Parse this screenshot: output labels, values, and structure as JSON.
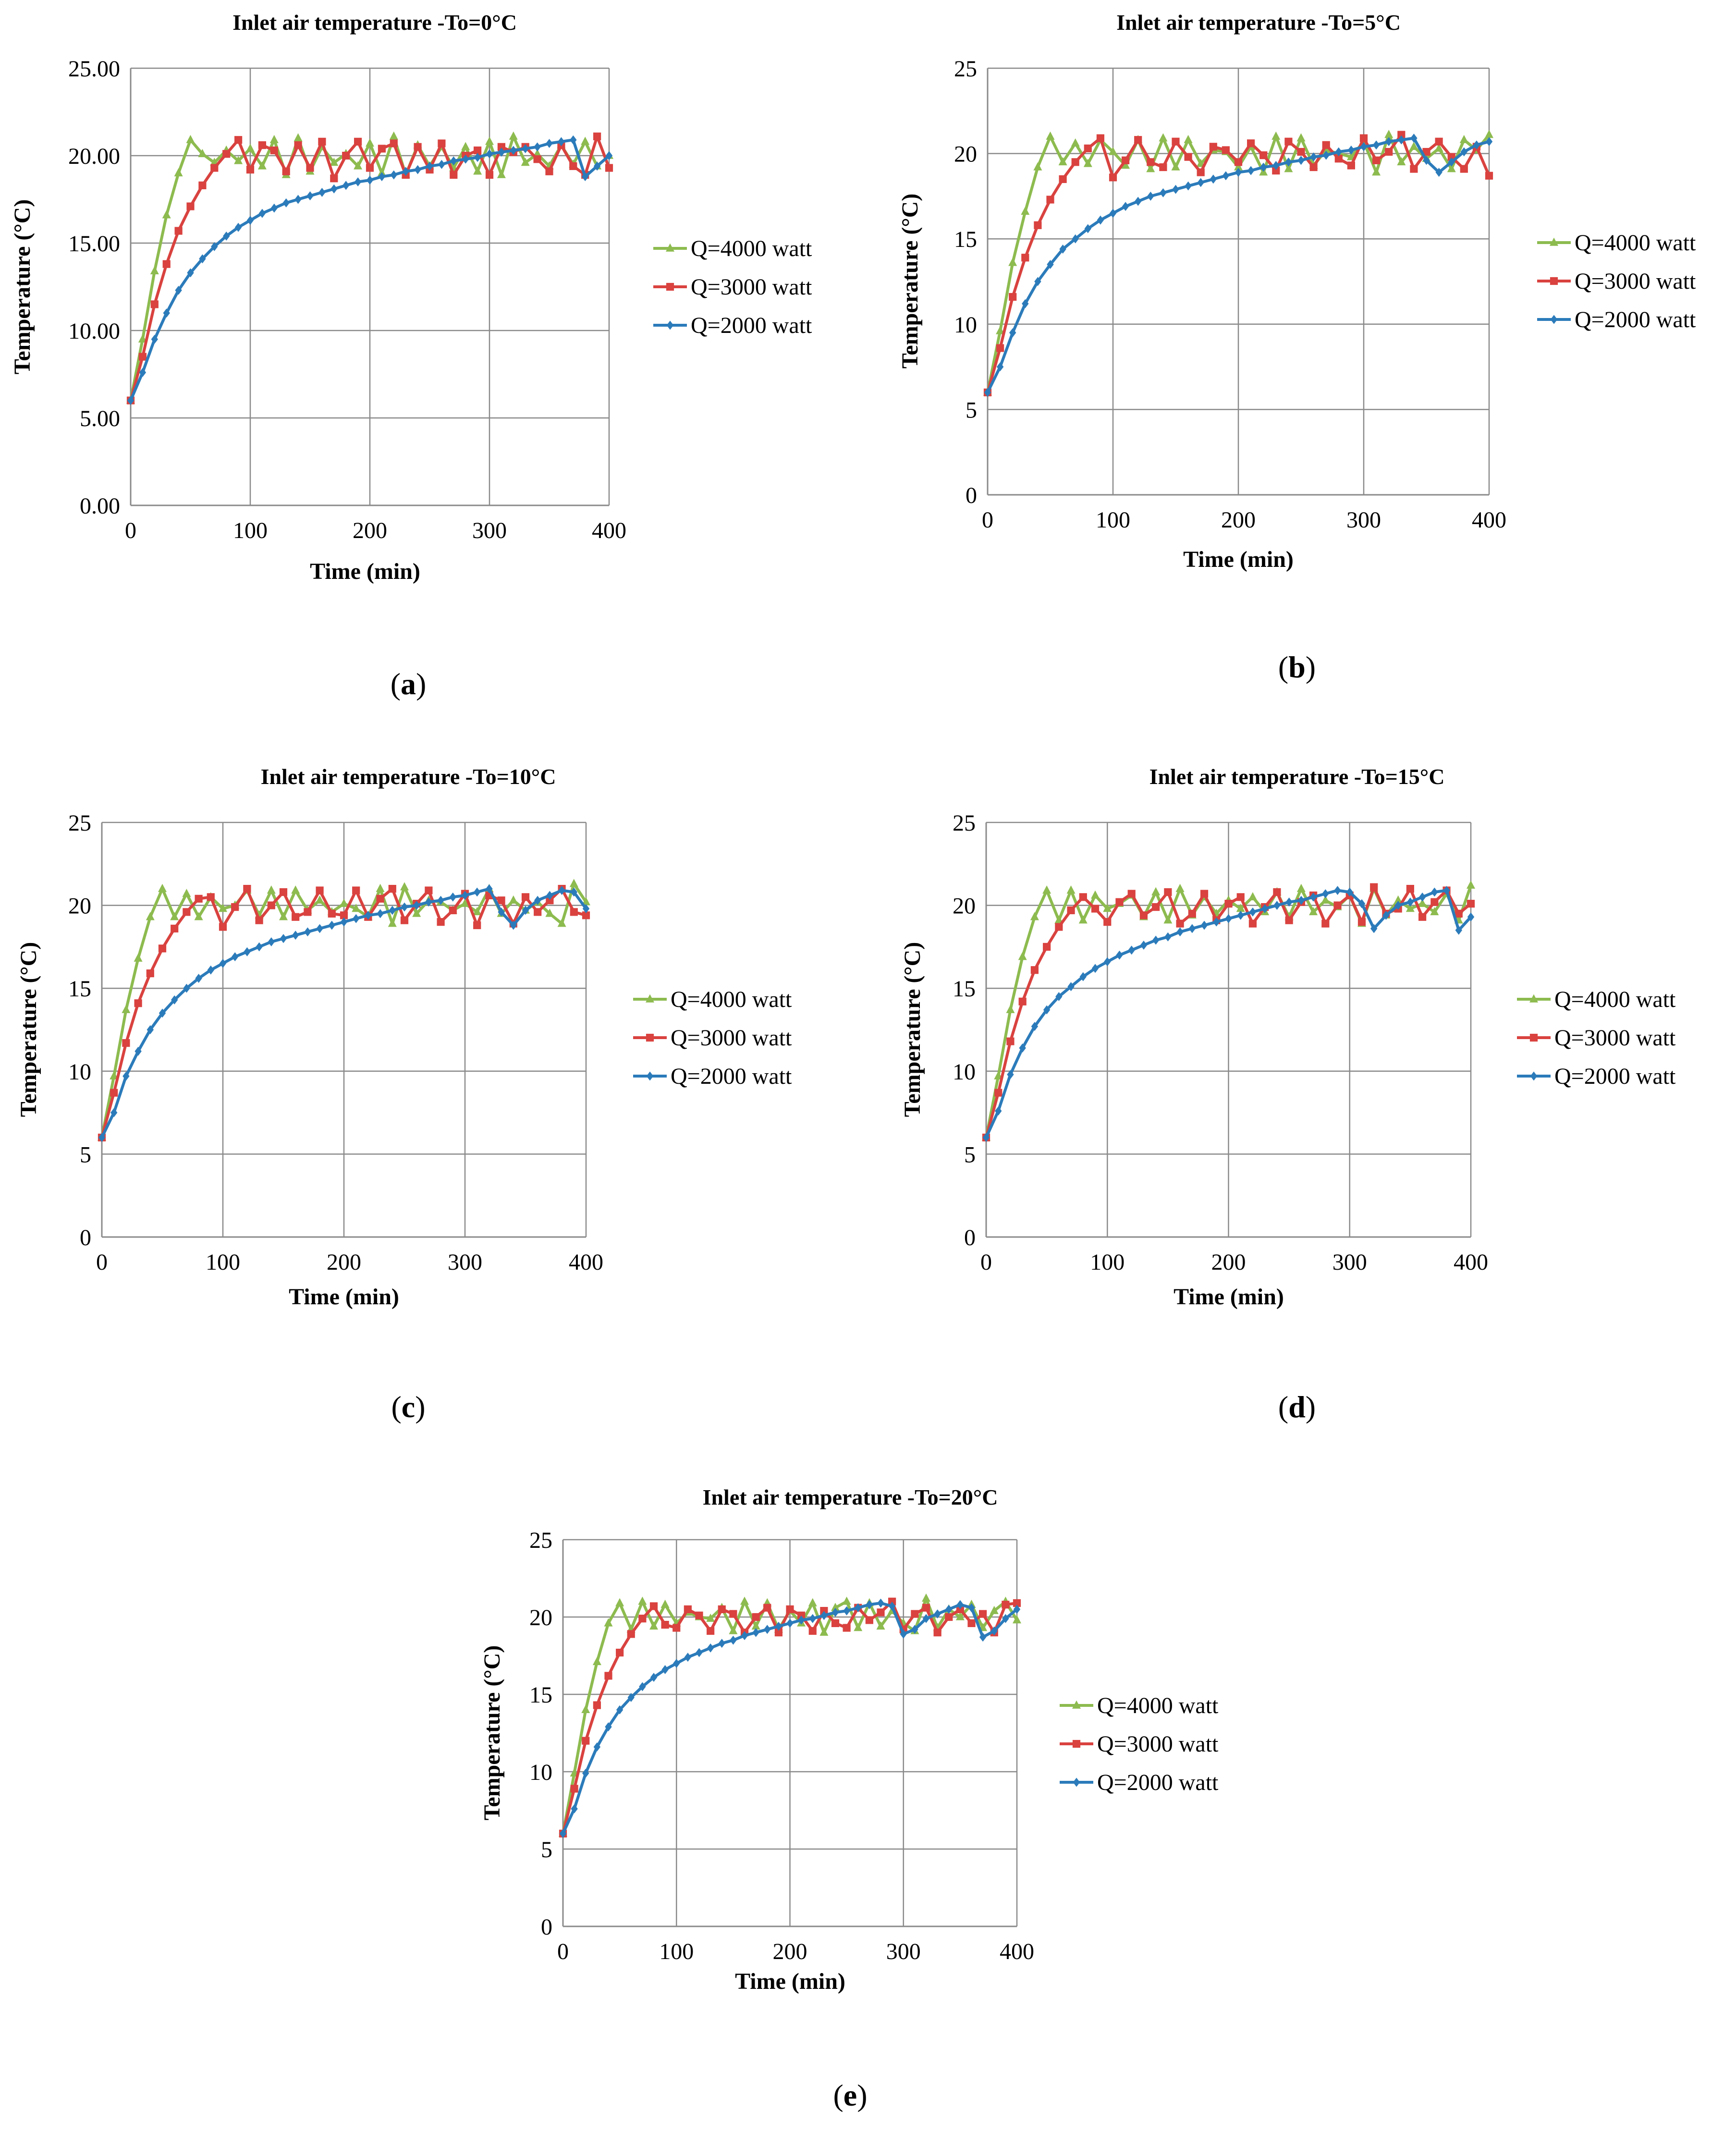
{
  "captions": [
    "(a)",
    "(b)",
    "(c)",
    "(d)",
    "(e)"
  ],
  "colors": {
    "q4000": "#8DBB4F",
    "q3000": "#D9423F",
    "q2000": "#2B7BBA",
    "grid": "#8a8a8a",
    "axis": "#8a8a8a"
  },
  "chart_data": [
    {
      "type": "line",
      "title": "Inlet air temperature -To=0°C",
      "xlabel": "Time (min)",
      "ylabel": "Temperature (°C)",
      "xlim": [
        0,
        400
      ],
      "ylim": [
        0,
        25
      ],
      "xticks": [
        "0",
        "100",
        "200",
        "300",
        "400"
      ],
      "yticks": [
        "0.00",
        "5.00",
        "10.00",
        "15.00",
        "20.00",
        "25.00"
      ],
      "caption": "(a)",
      "legend": "right",
      "x": [
        0,
        10,
        20,
        30,
        40,
        50,
        60,
        70,
        80,
        90,
        100,
        110,
        120,
        130,
        140,
        150,
        160,
        170,
        180,
        190,
        200,
        210,
        220,
        230,
        240,
        250,
        260,
        270,
        280,
        290,
        300,
        310,
        320,
        330,
        340,
        350,
        360,
        370,
        380,
        390,
        400
      ],
      "series": [
        {
          "name": "Q=4000 watt",
          "marker": "triangle",
          "values": [
            6.0,
            9.5,
            13.4,
            16.6,
            19.0,
            20.9,
            20.1,
            19.6,
            20.3,
            19.7,
            20.4,
            19.4,
            20.9,
            18.9,
            21.0,
            19.1,
            20.5,
            19.6,
            20.1,
            19.4,
            20.7,
            19.0,
            21.1,
            18.9,
            20.6,
            19.4,
            20.5,
            19.3,
            20.5,
            19.1,
            20.8,
            18.9,
            21.1,
            19.6,
            20.1,
            19.4,
            20.6,
            19.5,
            20.8,
            19.4,
            20.0
          ]
        },
        {
          "name": "Q=3000 watt",
          "marker": "square",
          "values": [
            6.0,
            8.5,
            11.5,
            13.8,
            15.7,
            17.1,
            18.3,
            19.3,
            20.1,
            20.9,
            19.2,
            20.6,
            20.3,
            19.1,
            20.6,
            19.3,
            20.8,
            18.7,
            20.0,
            20.8,
            19.3,
            20.4,
            20.7,
            18.9,
            20.5,
            19.2,
            20.7,
            18.9,
            20.0,
            20.3,
            18.9,
            20.5,
            20.2,
            20.5,
            19.8,
            19.1,
            20.6,
            19.4,
            18.9,
            21.1,
            19.3
          ]
        },
        {
          "name": "Q=2000 watt",
          "marker": "diamond",
          "values": [
            6.0,
            7.6,
            9.5,
            11.0,
            12.3,
            13.3,
            14.1,
            14.8,
            15.4,
            15.9,
            16.3,
            16.7,
            17.0,
            17.3,
            17.5,
            17.7,
            17.9,
            18.1,
            18.3,
            18.5,
            18.6,
            18.8,
            18.9,
            19.1,
            19.2,
            19.4,
            19.5,
            19.7,
            19.8,
            19.9,
            20.1,
            20.2,
            20.3,
            20.4,
            20.5,
            20.7,
            20.8,
            20.9,
            18.8,
            19.4,
            20.0
          ]
        }
      ]
    },
    {
      "type": "line",
      "title": "Inlet air temperature -To=5°C",
      "xlabel": "Time (min)",
      "ylabel": "Temperature (°C)",
      "xlim": [
        0,
        400
      ],
      "ylim": [
        0,
        25
      ],
      "xticks": [
        "0",
        "100",
        "200",
        "300",
        "400"
      ],
      "yticks": [
        "0",
        "5",
        "10",
        "15",
        "20",
        "25"
      ],
      "caption": "(b)",
      "legend": "right",
      "x": [
        0,
        10,
        20,
        30,
        40,
        50,
        60,
        70,
        80,
        90,
        100,
        110,
        120,
        130,
        140,
        150,
        160,
        170,
        180,
        190,
        200,
        210,
        220,
        230,
        240,
        250,
        260,
        270,
        280,
        290,
        300,
        310,
        320,
        330,
        340,
        350,
        360,
        370,
        380,
        390,
        400
      ],
      "series": [
        {
          "name": "Q=4000 watt",
          "marker": "triangle",
          "values": [
            6.0,
            9.6,
            13.6,
            16.6,
            19.2,
            21.0,
            19.5,
            20.6,
            19.4,
            20.8,
            20.1,
            19.3,
            20.8,
            19.1,
            20.9,
            19.2,
            20.8,
            19.4,
            20.2,
            20.1,
            19.2,
            20.4,
            18.9,
            21.0,
            19.1,
            20.9,
            19.3,
            20.2,
            20.0,
            19.8,
            20.7,
            18.9,
            21.1,
            19.5,
            20.4,
            19.7,
            20.3,
            19.1,
            20.8,
            20.2,
            21.1
          ]
        },
        {
          "name": "Q=3000 watt",
          "marker": "square",
          "values": [
            6.0,
            8.6,
            11.6,
            13.9,
            15.8,
            17.3,
            18.5,
            19.5,
            20.3,
            20.9,
            18.6,
            19.6,
            20.8,
            19.5,
            19.2,
            20.7,
            19.8,
            18.9,
            20.4,
            20.2,
            19.5,
            20.6,
            19.9,
            19.0,
            20.7,
            20.1,
            19.2,
            20.5,
            19.7,
            19.3,
            20.9,
            19.6,
            20.1,
            21.1,
            19.1,
            20.1,
            20.7,
            19.8,
            19.1,
            20.4,
            18.7
          ]
        },
        {
          "name": "Q=2000 watt",
          "marker": "diamond",
          "values": [
            6.0,
            7.5,
            9.5,
            11.2,
            12.5,
            13.5,
            14.4,
            15.0,
            15.6,
            16.1,
            16.5,
            16.9,
            17.2,
            17.5,
            17.7,
            17.9,
            18.1,
            18.3,
            18.5,
            18.7,
            18.9,
            19.0,
            19.2,
            19.3,
            19.5,
            19.6,
            19.8,
            19.9,
            20.1,
            20.2,
            20.4,
            20.5,
            20.7,
            20.8,
            20.9,
            19.6,
            18.9,
            19.5,
            20.1,
            20.5,
            20.7
          ]
        }
      ]
    },
    {
      "type": "line",
      "title": "Inlet air temperature -To=10°C",
      "xlabel": "Time (min)",
      "ylabel": "Temperature (°C)",
      "xlim": [
        0,
        400
      ],
      "ylim": [
        0,
        25
      ],
      "xticks": [
        "0",
        "100",
        "200",
        "300",
        "400"
      ],
      "yticks": [
        "0",
        "5",
        "10",
        "15",
        "20",
        "25"
      ],
      "caption": "(c)",
      "legend": "right",
      "x": [
        0,
        10,
        20,
        30,
        40,
        50,
        60,
        70,
        80,
        90,
        100,
        110,
        120,
        130,
        140,
        150,
        160,
        170,
        180,
        190,
        200,
        210,
        220,
        230,
        240,
        250,
        260,
        270,
        280,
        290,
        300,
        310,
        320,
        330,
        340,
        350,
        360,
        370,
        380,
        390,
        400
      ],
      "series": [
        {
          "name": "Q=4000 watt",
          "marker": "triangle",
          "values": [
            6.0,
            9.7,
            13.7,
            16.8,
            19.3,
            21.0,
            19.3,
            20.7,
            19.3,
            20.5,
            19.8,
            20.0,
            20.9,
            19.4,
            20.9,
            19.3,
            20.9,
            19.7,
            20.3,
            19.6,
            20.1,
            19.8,
            19.3,
            21.0,
            18.9,
            21.1,
            19.5,
            20.3,
            20.2,
            19.7,
            20.1,
            19.6,
            21.0,
            19.5,
            20.3,
            19.7,
            20.2,
            19.5,
            18.9,
            21.3,
            20.2
          ]
        },
        {
          "name": "Q=3000 watt",
          "marker": "square",
          "values": [
            6.0,
            8.7,
            11.7,
            14.1,
            15.9,
            17.4,
            18.6,
            19.6,
            20.4,
            20.5,
            18.7,
            19.9,
            21.0,
            19.1,
            20.0,
            20.8,
            19.3,
            19.6,
            20.9,
            19.5,
            19.4,
            20.9,
            19.3,
            20.4,
            21.0,
            19.1,
            20.1,
            20.9,
            19.0,
            19.7,
            20.7,
            18.8,
            20.6,
            20.3,
            18.9,
            20.5,
            19.6,
            20.3,
            21.0,
            19.6,
            19.4
          ]
        },
        {
          "name": "Q=2000 watt",
          "marker": "diamond",
          "values": [
            6.0,
            7.5,
            9.7,
            11.2,
            12.5,
            13.5,
            14.3,
            15.0,
            15.6,
            16.1,
            16.5,
            16.9,
            17.2,
            17.5,
            17.8,
            18.0,
            18.2,
            18.4,
            18.6,
            18.8,
            19.0,
            19.2,
            19.4,
            19.5,
            19.7,
            19.9,
            20.0,
            20.2,
            20.3,
            20.5,
            20.6,
            20.8,
            21.0,
            19.6,
            18.8,
            19.7,
            20.3,
            20.6,
            20.9,
            20.8,
            19.8
          ]
        }
      ]
    },
    {
      "type": "line",
      "title": "Inlet air temperature -To=15°C",
      "xlabel": "Time (min)",
      "ylabel": "Temperature (°C)",
      "xlim": [
        0,
        400
      ],
      "ylim": [
        0,
        25
      ],
      "xticks": [
        "0",
        "100",
        "200",
        "300",
        "400"
      ],
      "yticks": [
        "0",
        "5",
        "10",
        "15",
        "20",
        "25"
      ],
      "caption": "(d)",
      "legend": "right",
      "x": [
        0,
        10,
        20,
        30,
        40,
        50,
        60,
        70,
        80,
        90,
        100,
        110,
        120,
        130,
        140,
        150,
        160,
        170,
        180,
        190,
        200,
        210,
        220,
        230,
        240,
        250,
        260,
        270,
        280,
        290,
        300,
        310,
        320,
        330,
        340,
        350,
        360,
        370,
        380,
        390,
        400
      ],
      "series": [
        {
          "name": "Q=4000 watt",
          "marker": "triangle",
          "values": [
            6.0,
            9.7,
            13.7,
            16.9,
            19.3,
            20.9,
            19.1,
            20.9,
            19.1,
            20.6,
            19.8,
            20.1,
            20.6,
            19.3,
            20.8,
            19.1,
            21.0,
            19.4,
            20.5,
            19.5,
            20.3,
            19.8,
            20.5,
            19.6,
            20.8,
            19.3,
            21.0,
            19.6,
            20.3,
            19.9,
            20.6,
            18.9,
            21.0,
            19.4,
            20.3,
            19.8,
            20.1,
            19.6,
            20.7,
            19.1,
            21.2
          ]
        },
        {
          "name": "Q=3000 watt",
          "marker": "square",
          "values": [
            6.0,
            8.7,
            11.8,
            14.2,
            16.1,
            17.5,
            18.7,
            19.7,
            20.5,
            19.8,
            19.0,
            20.2,
            20.7,
            19.4,
            19.9,
            20.8,
            18.9,
            19.5,
            20.7,
            19.1,
            20.1,
            20.5,
            18.9,
            19.9,
            20.8,
            19.1,
            20.2,
            20.6,
            18.9,
            20.0,
            20.6,
            19.0,
            21.1,
            19.5,
            19.8,
            21.0,
            19.3,
            20.2,
            20.9,
            19.5,
            20.1
          ]
        },
        {
          "name": "Q=2000 watt",
          "marker": "diamond",
          "values": [
            6.0,
            7.6,
            9.8,
            11.4,
            12.7,
            13.7,
            14.5,
            15.1,
            15.7,
            16.2,
            16.6,
            17.0,
            17.3,
            17.6,
            17.9,
            18.1,
            18.4,
            18.6,
            18.8,
            19.0,
            19.2,
            19.4,
            19.6,
            19.8,
            20.0,
            20.2,
            20.3,
            20.5,
            20.7,
            20.9,
            20.8,
            20.1,
            18.6,
            19.4,
            20.0,
            20.2,
            20.5,
            20.8,
            20.9,
            18.5,
            19.3
          ]
        }
      ]
    },
    {
      "type": "line",
      "title": "Inlet air temperature -To=20°C",
      "xlabel": "Time (min)",
      "ylabel": "Temperature (°C)",
      "xlim": [
        0,
        400
      ],
      "ylim": [
        0,
        25
      ],
      "xticks": [
        "0",
        "100",
        "200",
        "300",
        "400"
      ],
      "yticks": [
        "0",
        "5",
        "10",
        "15",
        "20",
        "25"
      ],
      "caption": "(e)",
      "legend": "right",
      "x": [
        0,
        10,
        20,
        30,
        40,
        50,
        60,
        70,
        80,
        90,
        100,
        110,
        120,
        130,
        140,
        150,
        160,
        170,
        180,
        190,
        200,
        210,
        220,
        230,
        240,
        250,
        260,
        270,
        280,
        290,
        300,
        310,
        320,
        330,
        340,
        350,
        360,
        370,
        380,
        390,
        400
      ],
      "series": [
        {
          "name": "Q=4000 watt",
          "marker": "triangle",
          "values": [
            6.0,
            9.9,
            14.0,
            17.1,
            19.6,
            20.9,
            19.2,
            21.0,
            19.4,
            20.8,
            19.6,
            20.3,
            20.0,
            19.9,
            20.6,
            19.1,
            21.0,
            19.4,
            20.9,
            19.2,
            20.4,
            19.6,
            20.9,
            19.0,
            20.6,
            21.0,
            19.3,
            20.9,
            19.4,
            20.4,
            19.6,
            19.1,
            21.2,
            19.3,
            20.5,
            20.0,
            20.8,
            19.3,
            20.4,
            21.0,
            19.8
          ]
        },
        {
          "name": "Q=3000 watt",
          "marker": "square",
          "values": [
            6.0,
            8.9,
            12.0,
            14.3,
            16.2,
            17.7,
            18.9,
            19.9,
            20.7,
            19.5,
            19.3,
            20.5,
            20.1,
            19.1,
            20.5,
            20.2,
            19.0,
            20.0,
            20.6,
            19.0,
            20.5,
            20.1,
            19.1,
            20.4,
            19.6,
            19.3,
            20.6,
            19.8,
            20.3,
            21.0,
            19.2,
            20.2,
            20.6,
            19.0,
            20.0,
            20.5,
            19.6,
            20.2,
            19.0,
            20.8,
            20.9
          ]
        },
        {
          "name": "Q=2000 watt",
          "marker": "diamond",
          "values": [
            6.0,
            7.6,
            9.9,
            11.6,
            12.9,
            14.0,
            14.8,
            15.5,
            16.1,
            16.6,
            17.0,
            17.4,
            17.7,
            18.0,
            18.3,
            18.5,
            18.8,
            19.0,
            19.2,
            19.4,
            19.6,
            19.8,
            19.9,
            20.1,
            20.3,
            20.4,
            20.6,
            20.8,
            20.9,
            20.7,
            18.9,
            19.2,
            19.9,
            20.2,
            20.5,
            20.8,
            20.6,
            18.7,
            19.1,
            19.9,
            20.5
          ]
        }
      ]
    }
  ]
}
